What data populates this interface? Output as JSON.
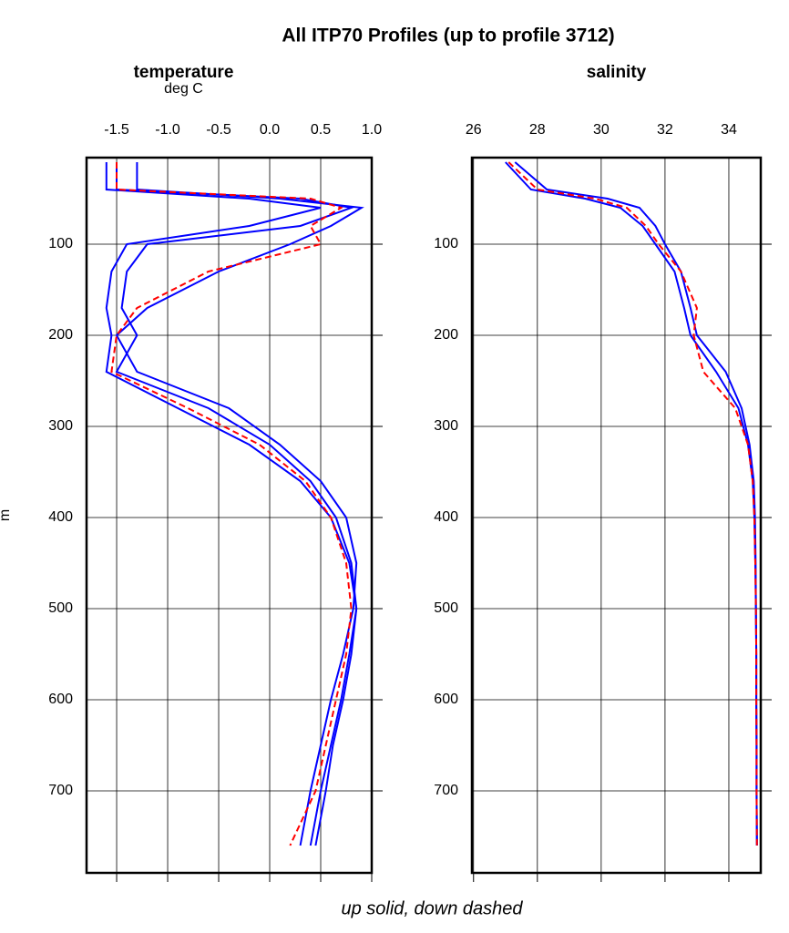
{
  "title": "All ITP70 Profiles (up to profile 3712)",
  "note": "up solid, down dashed",
  "chart_data": [
    {
      "type": "line",
      "title": "temperature",
      "xlabel": "deg C",
      "ylabel": "m",
      "xlim": [
        -1.795,
        1.0
      ],
      "ylim": [
        5,
        790
      ],
      "xticks": [
        -1.5,
        {
          "value": -1.0,
          "label": "-1.0"
        },
        -0.5,
        {
          "value": 0.0,
          "label": "0.0"
        },
        0.5,
        {
          "value": 1.0,
          "label": "1.0"
        }
      ],
      "yticks": [
        100,
        200,
        300,
        400,
        500,
        600,
        700
      ],
      "grid": true,
      "depth": [
        10,
        40,
        50,
        60,
        80,
        100,
        130,
        170,
        200,
        240,
        280,
        320,
        360,
        400,
        450,
        500,
        550,
        600,
        650,
        700,
        760
      ],
      "series": [
        {
          "color": "#0000ff",
          "dash": false,
          "values": [
            -1.5,
            -1.5,
            0.3,
            0.8,
            0.3,
            -1.2,
            -1.4,
            -1.45,
            -1.3,
            -1.5,
            -0.6,
            0.0,
            0.4,
            0.65,
            0.8,
            0.85,
            0.78,
            0.7,
            0.6,
            0.5,
            0.4
          ]
        },
        {
          "color": "#0000ff",
          "dash": false,
          "values": [
            -1.3,
            -1.3,
            0.1,
            0.9,
            0.6,
            0.2,
            -0.5,
            -1.2,
            -1.5,
            -1.3,
            -0.4,
            0.1,
            0.5,
            0.75,
            0.85,
            0.82,
            0.72,
            0.6,
            0.5,
            0.4,
            0.3
          ]
        },
        {
          "color": "#0000ff",
          "dash": false,
          "values": [
            -1.6,
            -1.6,
            -0.2,
            0.5,
            -0.2,
            -1.4,
            -1.55,
            -1.6,
            -1.55,
            -1.6,
            -0.9,
            -0.2,
            0.3,
            0.6,
            0.78,
            0.85,
            0.8,
            0.72,
            0.62,
            0.55,
            0.45
          ]
        },
        {
          "color": "#ff0000",
          "dash": true,
          "values": [
            -1.5,
            -1.5,
            0.4,
            0.7,
            0.4,
            0.5,
            -0.6,
            -1.3,
            -1.5,
            -1.55,
            -0.8,
            -0.1,
            0.35,
            0.6,
            0.75,
            0.8,
            0.75,
            0.65,
            0.55,
            0.45,
            0.2
          ]
        }
      ]
    },
    {
      "type": "line",
      "title": "salinity",
      "xlim": [
        25.95,
        35.0
      ],
      "ylim": [
        5,
        790
      ],
      "xticks": [
        26,
        28,
        30,
        32,
        34
      ],
      "yticks": [
        100,
        200,
        300,
        400,
        500,
        600,
        700
      ],
      "grid": true,
      "depth": [
        10,
        40,
        50,
        60,
        80,
        100,
        130,
        170,
        200,
        240,
        280,
        320,
        360,
        400,
        450,
        500,
        550,
        600,
        650,
        700,
        760
      ],
      "series": [
        {
          "color": "#0000ff",
          "dash": false,
          "values": [
            27.0,
            27.8,
            29.5,
            30.6,
            31.3,
            31.7,
            32.3,
            32.6,
            32.8,
            33.6,
            34.3,
            34.6,
            34.75,
            34.8,
            34.83,
            34.85,
            34.86,
            34.86,
            34.87,
            34.87,
            34.88
          ]
        },
        {
          "color": "#0000ff",
          "dash": false,
          "values": [
            27.3,
            28.3,
            30.2,
            31.2,
            31.7,
            32.0,
            32.5,
            32.8,
            33.0,
            33.9,
            34.4,
            34.65,
            34.78,
            34.82,
            34.84,
            34.85,
            34.86,
            34.86,
            34.87,
            34.87,
            34.88
          ]
        },
        {
          "color": "#ff0000",
          "dash": true,
          "values": [
            27.1,
            28.0,
            29.8,
            30.8,
            31.4,
            31.8,
            32.5,
            33.0,
            32.9,
            33.2,
            34.2,
            34.6,
            34.75,
            34.8,
            34.83,
            34.85,
            34.86,
            34.86,
            34.87,
            34.87,
            34.88
          ]
        }
      ]
    }
  ]
}
